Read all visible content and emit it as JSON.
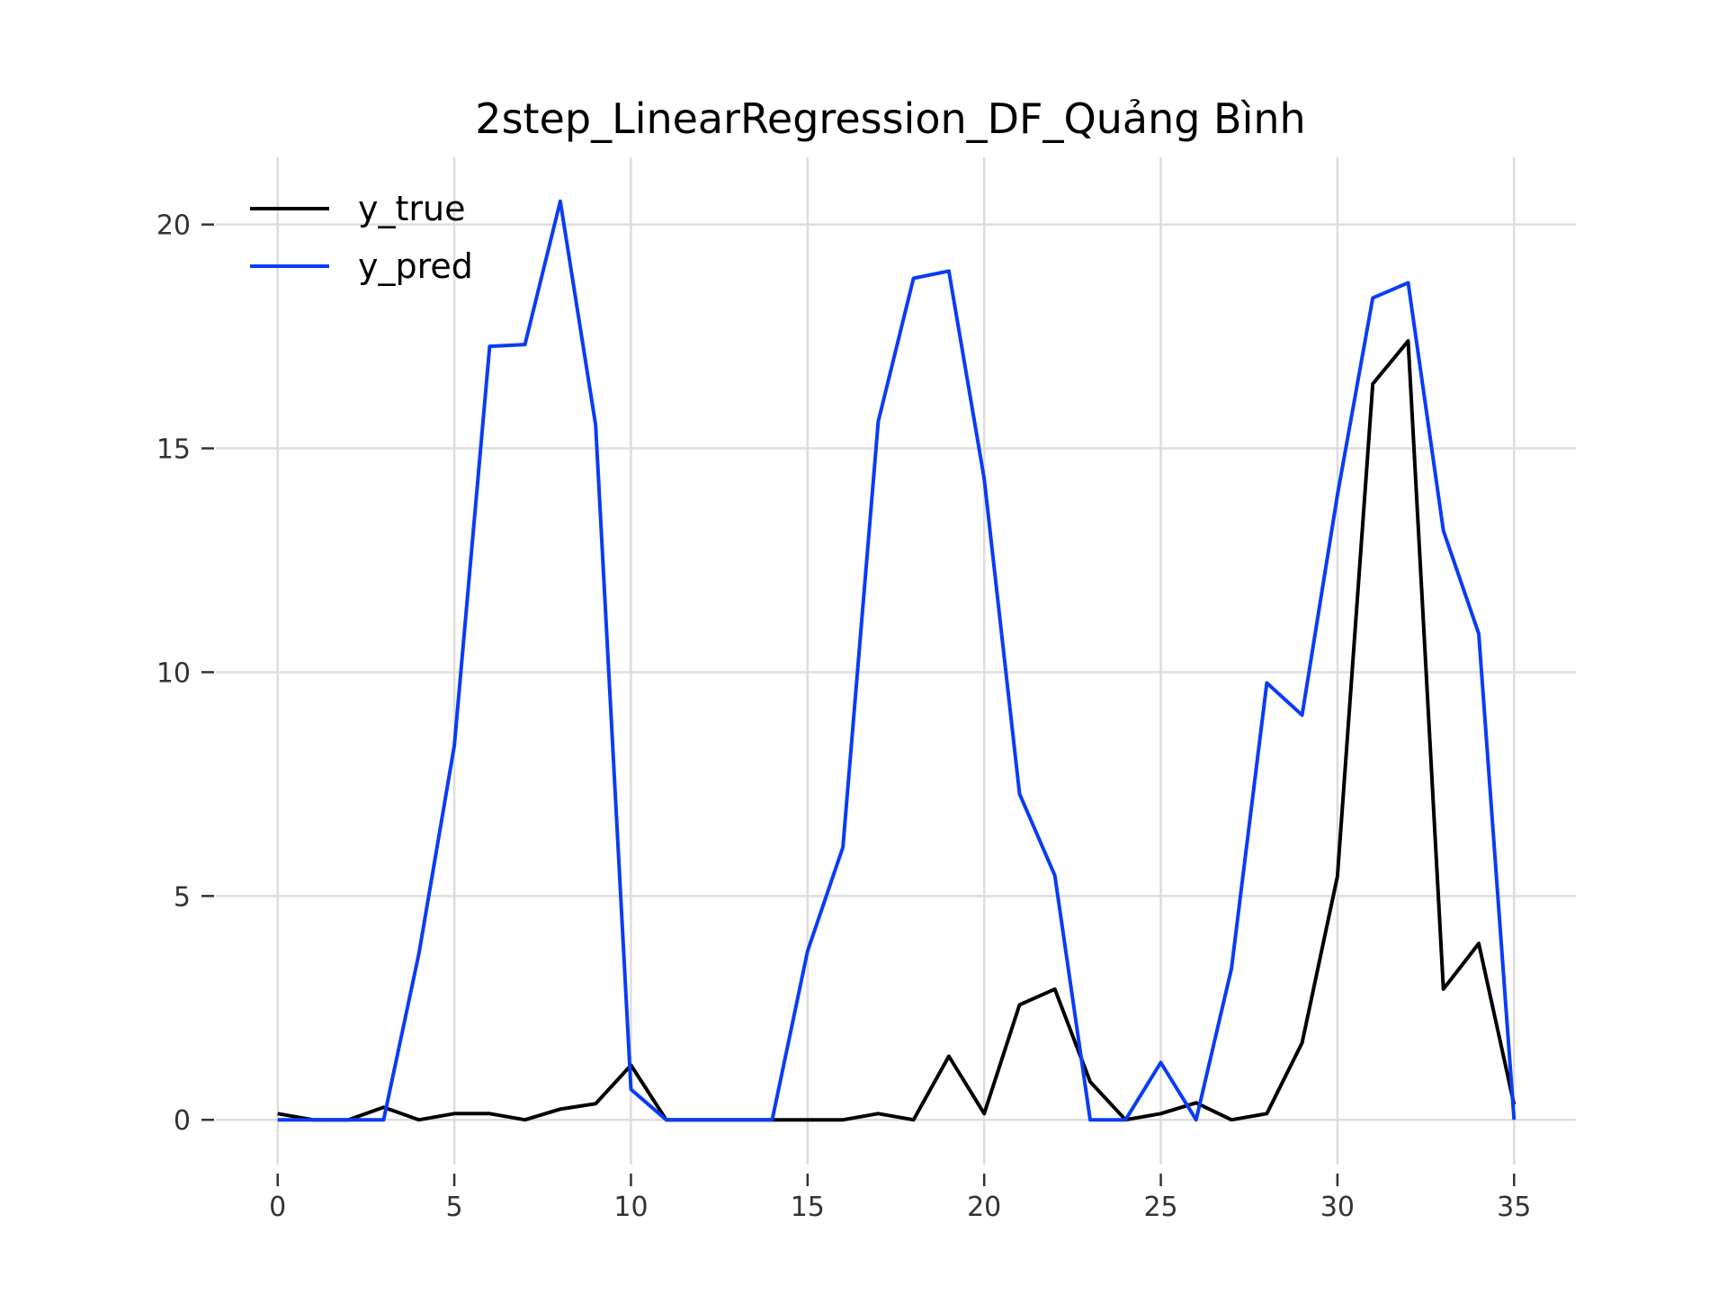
{
  "chart_data": {
    "type": "line",
    "title": "2step_LinearRegression_DF_Quảng Bình",
    "xlabel": "",
    "ylabel": "",
    "xlim": [
      -1.75,
      36.75
    ],
    "ylim": [
      -1.0,
      21.5
    ],
    "xticks": [
      0,
      5,
      10,
      15,
      20,
      25,
      30,
      35
    ],
    "yticks": [
      0,
      5,
      10,
      15,
      20
    ],
    "grid": true,
    "legend": "top-left",
    "x": [
      0,
      1,
      2,
      3,
      4,
      5,
      6,
      7,
      8,
      9,
      10,
      11,
      12,
      13,
      14,
      15,
      16,
      17,
      18,
      19,
      20,
      21,
      22,
      23,
      24,
      25,
      26,
      27,
      28,
      29,
      30,
      31,
      32,
      33,
      34,
      35
    ],
    "series": [
      {
        "name": "y_true",
        "color": "#000000",
        "values": [
          0.14,
          0.0,
          0.0,
          0.28,
          0.0,
          0.14,
          0.14,
          0.0,
          0.24,
          0.36,
          1.22,
          0.0,
          0.0,
          0.0,
          0.0,
          0.0,
          0.0,
          0.14,
          0.0,
          1.42,
          0.14,
          2.57,
          2.92,
          0.85,
          0.0,
          0.14,
          0.38,
          0.0,
          0.14,
          1.72,
          5.44,
          16.44,
          17.4,
          2.92,
          3.94,
          0.34
        ]
      },
      {
        "name": "y_pred",
        "color": "#0a3cf5",
        "values": [
          0.0,
          0.0,
          0.0,
          0.0,
          3.72,
          8.36,
          17.28,
          17.32,
          20.52,
          15.52,
          0.68,
          0.0,
          0.0,
          0.0,
          0.0,
          3.77,
          6.09,
          15.6,
          18.8,
          18.96,
          14.32,
          7.28,
          5.46,
          0.0,
          0.0,
          1.28,
          0.0,
          3.38,
          9.76,
          9.04,
          13.96,
          18.36,
          18.7,
          13.16,
          10.86,
          0.0
        ]
      }
    ]
  }
}
